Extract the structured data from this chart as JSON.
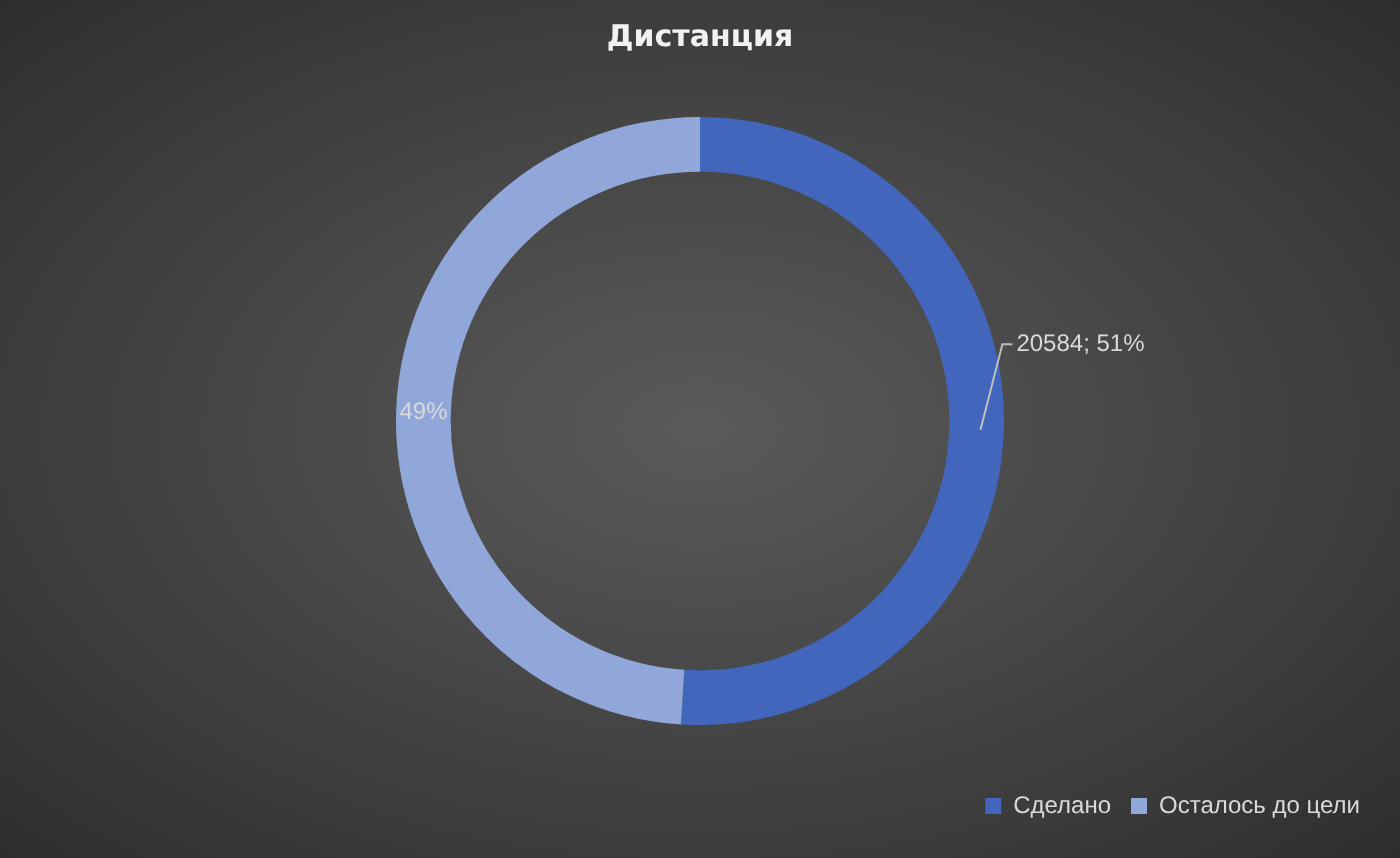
{
  "chart_data": {
    "type": "donut",
    "title": "Дистанция",
    "categories": [
      "Сделано",
      "Осталось до цели"
    ],
    "values": [
      51,
      49
    ],
    "colors": [
      "#4166bb",
      "#91a6d9"
    ],
    "value_labels": [
      "20584; 51%",
      "49%"
    ],
    "legend": "bottom right"
  }
}
